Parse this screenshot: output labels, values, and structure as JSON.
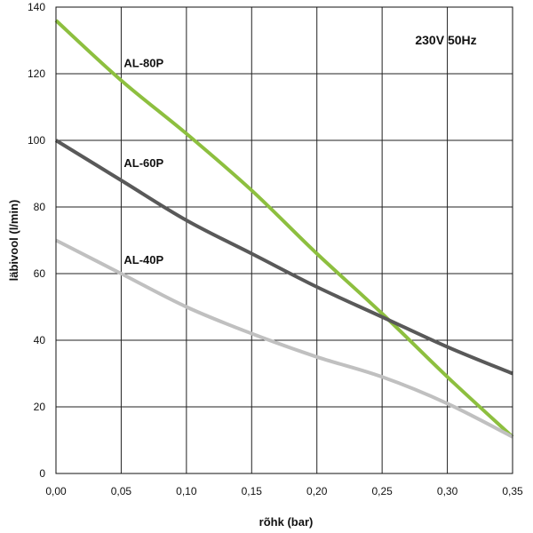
{
  "chart_data": {
    "type": "line",
    "annotation": "230V 50Hz",
    "xlabel": "rõhk (bar)",
    "ylabel": "läbivool (l/min)",
    "xlim": [
      0,
      0.35
    ],
    "ylim": [
      0,
      140
    ],
    "xticks": [
      0,
      0.05,
      0.1,
      0.15,
      0.2,
      0.25,
      0.3,
      0.35
    ],
    "xtick_labels": [
      "0,00",
      "0,05",
      "0,10",
      "0,15",
      "0,20",
      "0,25",
      "0,30",
      "0,35"
    ],
    "yticks": [
      0,
      20,
      40,
      60,
      80,
      100,
      120,
      140
    ],
    "ytick_labels": [
      "0",
      "20",
      "40",
      "60",
      "80",
      "100",
      "120",
      "140"
    ],
    "grid": true,
    "series": [
      {
        "name": "AL-80P",
        "color": "#8dbf3f",
        "x": [
          0,
          0.05,
          0.1,
          0.15,
          0.2,
          0.25,
          0.3,
          0.35
        ],
        "y": [
          136,
          118,
          102,
          85,
          66,
          48,
          29,
          11
        ]
      },
      {
        "name": "AL-60P",
        "color": "#595959",
        "x": [
          0,
          0.05,
          0.1,
          0.15,
          0.2,
          0.25,
          0.3,
          0.35
        ],
        "y": [
          100,
          88,
          76,
          66,
          56,
          47,
          38,
          30
        ]
      },
      {
        "name": "AL-40P",
        "color": "#c0c0c0",
        "x": [
          0,
          0.05,
          0.1,
          0.15,
          0.2,
          0.25,
          0.3,
          0.35
        ],
        "y": [
          70,
          60,
          50,
          42,
          35,
          29,
          21,
          11
        ]
      }
    ]
  }
}
